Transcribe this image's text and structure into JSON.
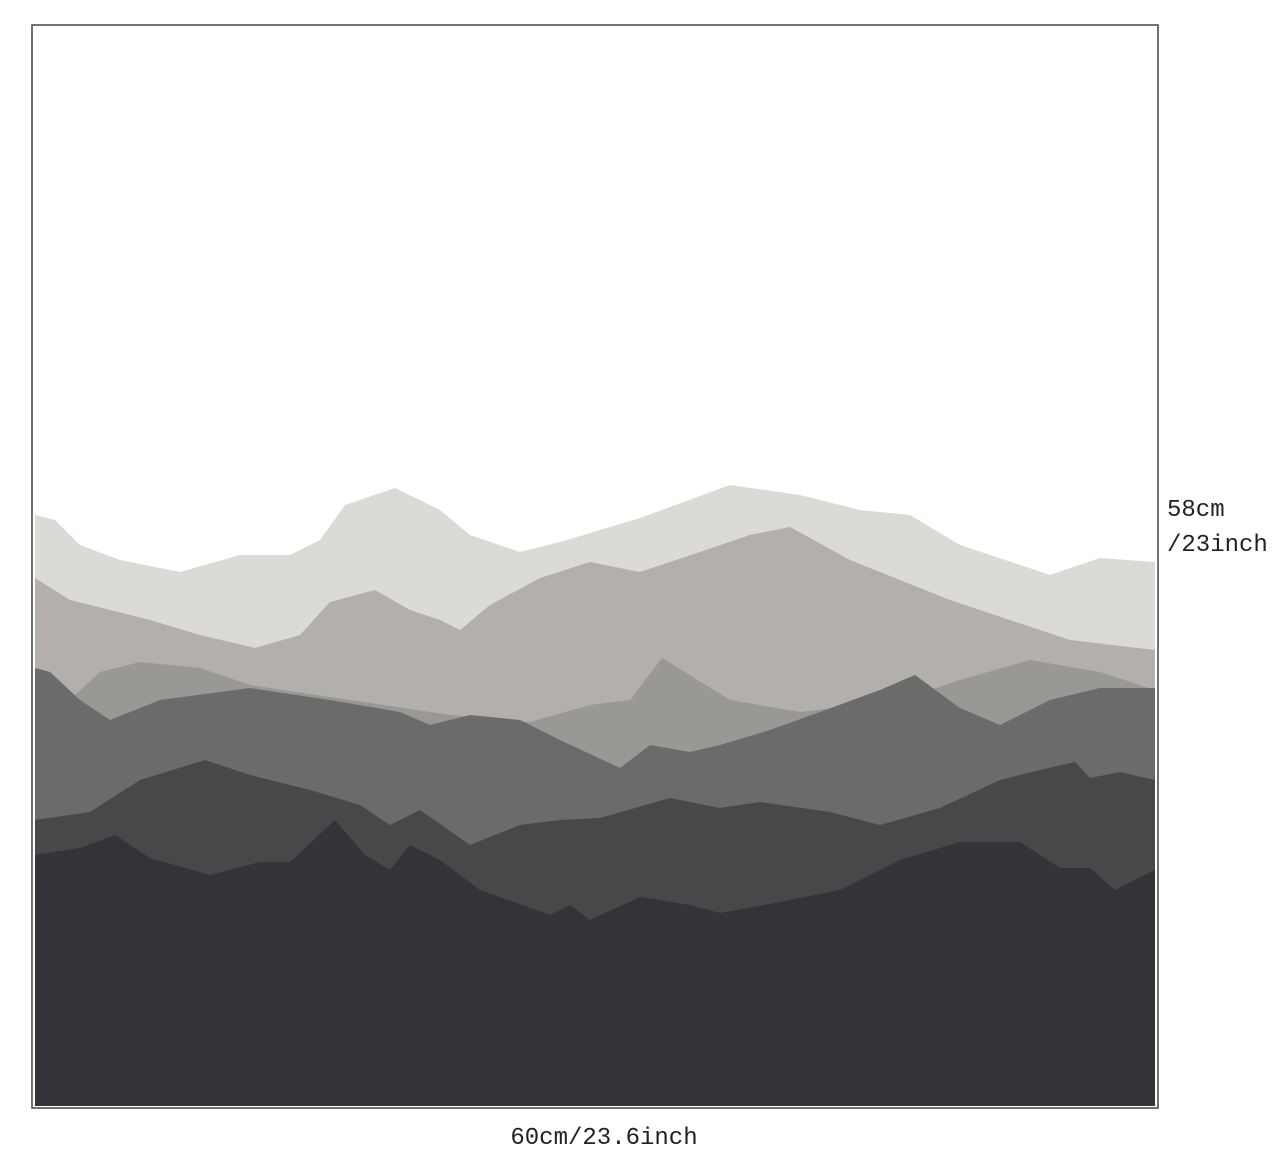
{
  "dimensions": {
    "height": [
      "58cm",
      "/23inch"
    ],
    "width": "60cm/23.6inch"
  }
}
